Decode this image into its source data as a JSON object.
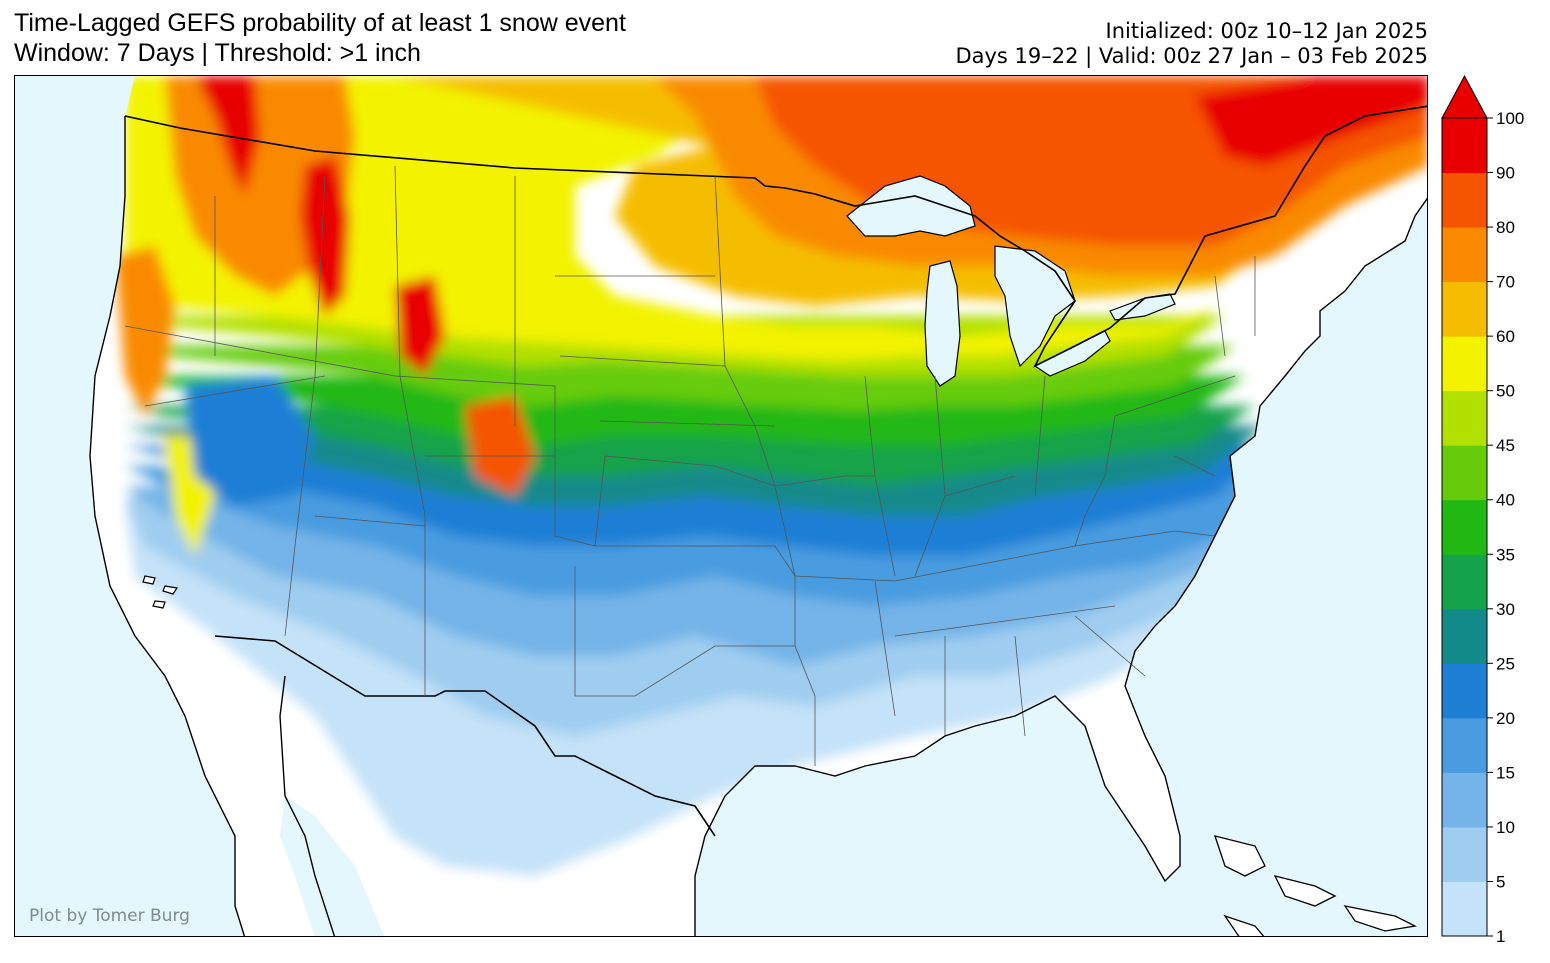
{
  "header": {
    "title_line1": "Time-Lagged GEFS probability of at least 1 snow event",
    "title_line2": "Window: 7 Days | Threshold: >1 inch",
    "init_line1": "Initialized: 00z 10–12 Jan 2025",
    "init_line2": "Days 19–22 | Valid: 00z 27 Jan – 03 Feb 2025"
  },
  "map": {
    "credit": "Plot by Tomer Burg",
    "ocean_color": "#e3f7fd",
    "land_color": "#ffffff"
  },
  "colorbar": {
    "levels": [
      1,
      5,
      10,
      15,
      20,
      25,
      30,
      35,
      40,
      45,
      50,
      60,
      70,
      80,
      90,
      100
    ],
    "labels": [
      "1",
      "5",
      "10",
      "15",
      "20",
      "25",
      "30",
      "35",
      "40",
      "45",
      "50",
      "60",
      "70",
      "80",
      "90",
      "100"
    ],
    "colors": [
      "#c4e2f8",
      "#9fcdf0",
      "#74b4e8",
      "#4a9ce0",
      "#1f7fd5",
      "#138a8a",
      "#14a34a",
      "#22b814",
      "#66cc0a",
      "#b2e000",
      "#f3f300",
      "#f5bd00",
      "#f98a00",
      "#f55400",
      "#e80000"
    ],
    "extend_max_color": "#e80000"
  }
}
